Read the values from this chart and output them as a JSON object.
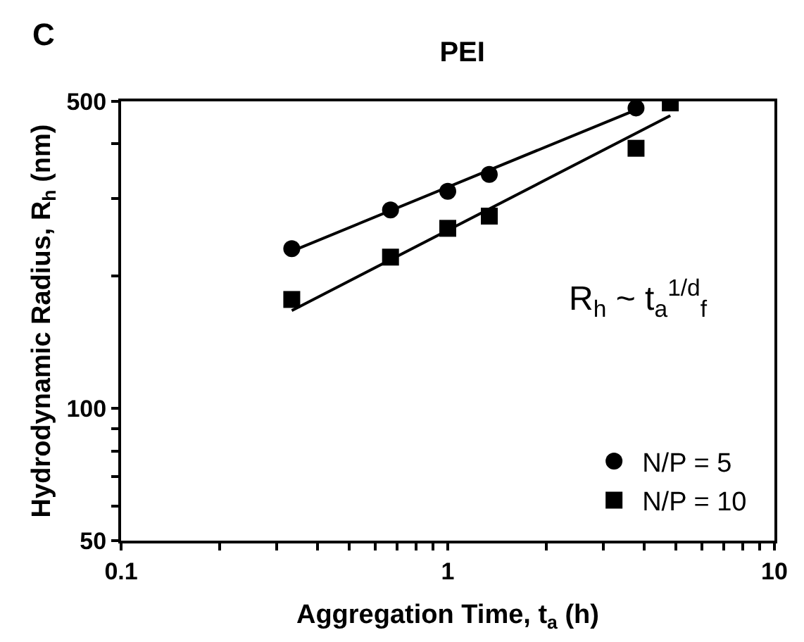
{
  "chart_data": {
    "type": "scatter",
    "title": "PEI",
    "xlabel": "Aggregation Time, t$_{a}$ (h)",
    "ylabel": "Hydrodynamic Radius, R$_{h}$ (nm)",
    "log": "xy",
    "xlim": [
      0.1,
      10
    ],
    "ylim": [
      50,
      500
    ],
    "xticks": [
      0.1,
      {
        "value": 0.2,
        "label": null
      },
      {
        "value": 0.3,
        "label": null
      },
      {
        "value": 0.4,
        "label": null
      },
      {
        "value": 0.5,
        "label": null
      },
      {
        "value": 0.6,
        "label": null
      },
      {
        "value": 0.7,
        "label": null
      },
      {
        "value": 0.8,
        "label": null
      },
      {
        "value": 0.9,
        "label": null
      },
      1,
      {
        "value": 2,
        "label": null
      },
      {
        "value": 3,
        "label": null
      },
      {
        "value": 4,
        "label": null
      },
      {
        "value": 5,
        "label": null
      },
      {
        "value": 6,
        "label": null
      },
      {
        "value": 7,
        "label": null
      },
      {
        "value": 8,
        "label": null
      },
      {
        "value": 9,
        "label": null
      },
      10
    ],
    "yticks": [
      50,
      {
        "value": 60,
        "label": null
      },
      {
        "value": 70,
        "label": null
      },
      {
        "value": 80,
        "label": null
      },
      {
        "value": 90,
        "label": null
      },
      100,
      {
        "value": 200,
        "label": null
      },
      {
        "value": 300,
        "label": null
      },
      {
        "value": 400,
        "label": null
      },
      500
    ],
    "legend": "bottom right",
    "series": [
      {
        "name": "N/P = 5",
        "marker": "circle",
        "color": "#000000",
        "x": [
          0.333,
          0.668,
          1,
          1.34,
          3.77
        ],
        "values": [
          231,
          283,
          312,
          341,
          483
        ]
      },
      {
        "name": "N/P = 10",
        "marker": "square",
        "color": "#000000",
        "x": [
          0.333,
          0.668,
          1,
          1.34,
          3.77,
          4.8
        ],
        "values": [
          177,
          221,
          257,
          274,
          391,
          496
        ]
      },
      {
        "type": "line",
        "color": "#000000",
        "line_style": "solid",
        "x": [
          0.333,
          3.61
        ],
        "values": [
          228,
          472
        ]
      },
      {
        "type": "line",
        "color": "#000000",
        "line_style": "solid",
        "x": [
          0.333,
          4.8
        ],
        "values": [
          167,
          464
        ]
      }
    ],
    "annotations": [
      "C",
      "R$_{h}$ ~ t$_{a}$$^{1/d}$$_{f}$"
    ]
  }
}
